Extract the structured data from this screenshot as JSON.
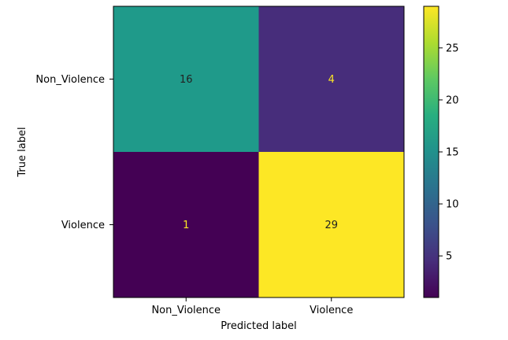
{
  "chart_data": {
    "type": "heatmap",
    "title": "",
    "xlabel": "Predicted label",
    "ylabel": "True label",
    "x_categories": [
      "Non_Violence",
      "Violence"
    ],
    "y_categories": [
      "Non_Violence",
      "Violence"
    ],
    "values": [
      [
        16,
        4
      ],
      [
        1,
        29
      ]
    ],
    "value_labels": [
      [
        "16",
        "4"
      ],
      [
        "1",
        "29"
      ]
    ],
    "colormap": "viridis",
    "color_range": [
      1,
      29
    ],
    "colorbar_ticks": [
      5,
      10,
      15,
      20,
      25
    ],
    "colorbar_tick_labels": [
      "5",
      "10",
      "15",
      "20",
      "25"
    ],
    "cell_colors": [
      [
        "#1f9a8a",
        "#472d7b"
      ],
      [
        "#440154",
        "#fde725"
      ]
    ],
    "text_colors": [
      [
        "#222222",
        "#fde725"
      ],
      [
        "#fde725",
        "#222222"
      ]
    ]
  }
}
